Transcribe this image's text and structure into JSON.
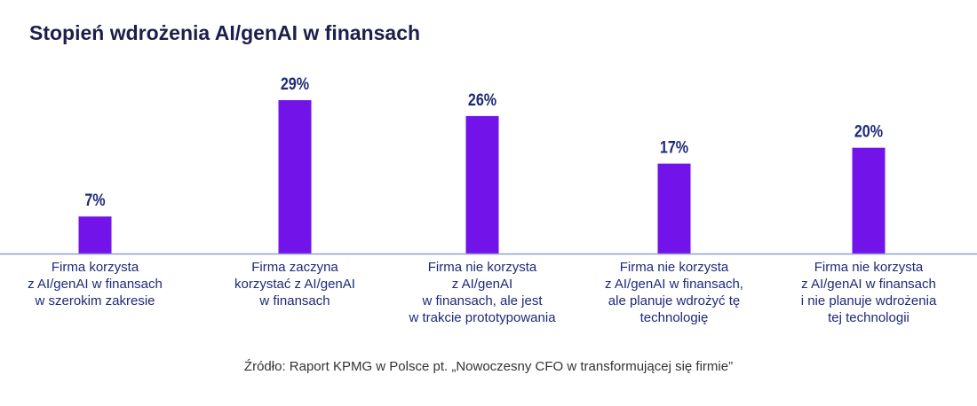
{
  "title": "Stopień wdrożenia AI/genAI w finansach",
  "source": "Źródło: Raport KPMG w Polsce pt. „Nowoczesny CFO w transformującej się firmie”",
  "colors": {
    "bar": "#7213ea",
    "label": "#1e2a7a",
    "axis": "#8fa0d0"
  },
  "chart_data": {
    "type": "bar",
    "title": "Stopień wdrożenia AI/genAI w finansach",
    "categories": [
      "Firma korzysta\nz AI/genAI w finansach\nw szerokim zakresie",
      "Firma zaczyna\nkorzystać z AI/genAI\nw finansach",
      "Firma nie korzysta\nz AI/genAI\nw finansach, ale jest\nw trakcie prototypowania",
      "Firma nie korzysta\nz AI/genAI w finansach,\nale planuje wdrożyć tę\ntechnologię",
      "Firma nie korzysta\nz AI/genAI w finansach\ni nie planuje wdrożenia\ntej technologii"
    ],
    "values": [
      7,
      29,
      26,
      17,
      20
    ],
    "data_labels": [
      "7%",
      "29%",
      "26%",
      "17%",
      "20%"
    ],
    "unit": "%",
    "ylim": [
      0,
      30
    ],
    "grid": false,
    "legend": "none"
  }
}
